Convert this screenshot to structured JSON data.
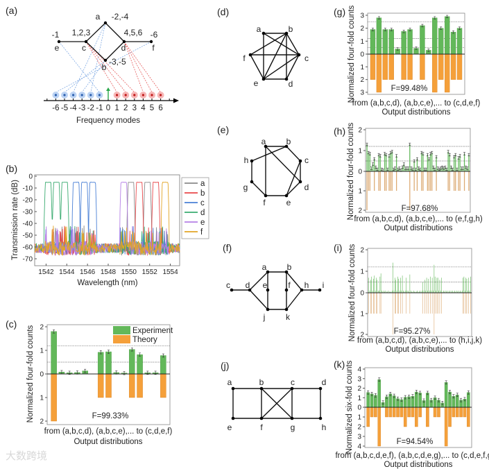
{
  "panel_labels": {
    "a": "(a)",
    "b": "(b)",
    "c": "(c)",
    "d": "(d)",
    "e": "(e)",
    "f": "(f)",
    "g": "(g)",
    "h": "(h)",
    "i": "(i)",
    "j": "(j)",
    "k": "(k)"
  },
  "watermark": "大数跨境",
  "colors": {
    "experiment": "#63b85a",
    "theory": "#f5a03a",
    "theory_light": "#dcaa72",
    "edge": "#111111",
    "mode_neg": "#6f9fe0",
    "mode_pos": "#e34848",
    "pump": "#2aa84a"
  },
  "diagram_a": {
    "nodes": {
      "a": "a",
      "b": "b",
      "c": "c",
      "d": "d",
      "e": "e",
      "f": "f"
    },
    "mode_labels": {
      "a": "-2,-4",
      "b": "-3,-5",
      "c": "1,2,3",
      "d": "4,5,6",
      "e": "-1",
      "f": "-6"
    },
    "edges": [
      [
        "e",
        "c"
      ],
      [
        "c",
        "a"
      ],
      [
        "a",
        "d"
      ],
      [
        "d",
        "b"
      ],
      [
        "b",
        "c"
      ],
      [
        "d",
        "f"
      ]
    ],
    "mode_links": [
      {
        "node": "e",
        "modes": [
          -1
        ]
      },
      {
        "node": "a",
        "modes": [
          -2,
          -4
        ]
      },
      {
        "node": "b",
        "modes": [
          -3,
          -5
        ]
      },
      {
        "node": "f",
        "modes": [
          -6
        ]
      },
      {
        "node": "c",
        "modes": [
          1,
          2,
          3
        ]
      },
      {
        "node": "d",
        "modes": [
          4,
          5,
          6
        ]
      }
    ],
    "modes": [
      "-6",
      "-5",
      "-4",
      "-3",
      "-2",
      "-1",
      "0",
      "1",
      "2",
      "3",
      "4",
      "5",
      "6"
    ],
    "xlabel": "Frequency modes"
  },
  "graph_d": {
    "nodes": {
      "a": "a",
      "b": "b",
      "c": "c",
      "d": "d",
      "e": "e",
      "f": "f"
    },
    "edges": [
      [
        "a",
        "b"
      ],
      [
        "a",
        "c"
      ],
      [
        "a",
        "e"
      ],
      [
        "b",
        "f"
      ],
      [
        "b",
        "e"
      ],
      [
        "b",
        "d"
      ],
      [
        "b",
        "c"
      ],
      [
        "f",
        "c"
      ],
      [
        "f",
        "e"
      ],
      [
        "c",
        "e"
      ],
      [
        "c",
        "d"
      ],
      [
        "e",
        "d"
      ]
    ]
  },
  "graph_e": {
    "nodes": {
      "a": "a",
      "b": "b",
      "c": "c",
      "d": "d",
      "e": "e",
      "f": "f",
      "g": "g",
      "h": "h"
    },
    "edges": [
      [
        "a",
        "b"
      ],
      [
        "b",
        "c"
      ],
      [
        "c",
        "d"
      ],
      [
        "d",
        "e"
      ],
      [
        "e",
        "f"
      ],
      [
        "f",
        "g"
      ],
      [
        "g",
        "h"
      ],
      [
        "h",
        "b"
      ],
      [
        "a",
        "f"
      ],
      [
        "a",
        "d"
      ],
      [
        "c",
        "e"
      ]
    ]
  },
  "graph_f": {
    "nodes": {
      "a": "a",
      "b": "b",
      "c": "c",
      "d": "d",
      "e": "e",
      "f": "f",
      "h": "h",
      "i": "i",
      "j": "j",
      "k": "k"
    },
    "edges": [
      [
        "c",
        "d"
      ],
      [
        "d",
        "a"
      ],
      [
        "d",
        "j"
      ],
      [
        "a",
        "b"
      ],
      [
        "a",
        "e"
      ],
      [
        "e",
        "j"
      ],
      [
        "b",
        "f"
      ],
      [
        "f",
        "k"
      ],
      [
        "j",
        "k"
      ],
      [
        "b",
        "h"
      ],
      [
        "k",
        "h"
      ],
      [
        "h",
        "i"
      ]
    ]
  },
  "graph_j": {
    "nodes": {
      "a": "a",
      "b": "b",
      "c": "c",
      "d": "d",
      "e": "e",
      "f": "f",
      "g": "g",
      "h": "h"
    },
    "edges": [
      [
        "a",
        "b"
      ],
      [
        "b",
        "c"
      ],
      [
        "c",
        "d"
      ],
      [
        "e",
        "f"
      ],
      [
        "f",
        "g"
      ],
      [
        "g",
        "h"
      ],
      [
        "a",
        "e"
      ],
      [
        "b",
        "f"
      ],
      [
        "c",
        "g"
      ],
      [
        "d",
        "h"
      ],
      [
        "b",
        "g"
      ],
      [
        "c",
        "f"
      ]
    ]
  },
  "chart_data": [
    {
      "panel": "b",
      "type": "line",
      "xlabel": "Wavelength (nm)",
      "ylabel": "Transmission rate (dB)",
      "xlim": [
        1540.9,
        1554.9
      ],
      "ylim": [
        -75,
        0
      ],
      "xticks": [
        "1542",
        "1544",
        "1546",
        "1548",
        "1550",
        "1552",
        "1554"
      ],
      "yticks": [
        "0",
        "-10",
        "-20",
        "-30",
        "-40",
        "-50",
        "-60",
        "-70"
      ],
      "legend": "right-outside",
      "passband_peak_db": -5,
      "noise_floor_db": -63,
      "passband_width_nm": 0.55,
      "series": [
        {
          "name": "a",
          "color": "#8a8a8a",
          "centers": [
            1550.2,
            1551.8
          ]
        },
        {
          "name": "b",
          "color": "#e8474a",
          "centers": [
            1551.0,
            1552.6
          ]
        },
        {
          "name": "c",
          "color": "#4a80d6",
          "centers": [
            1544.9,
            1545.7,
            1546.5
          ]
        },
        {
          "name": "d",
          "color": "#3aab70",
          "centers": [
            1542.2,
            1543.0,
            1543.8
          ]
        },
        {
          "name": "e",
          "color": "#b57fe6",
          "centers": [
            1549.5
          ]
        },
        {
          "name": "f",
          "color": "#e2a526",
          "centers": [
            1553.5
          ]
        }
      ]
    },
    {
      "panel": "c",
      "type": "bar",
      "ylabel": "Normalized four-fold counts",
      "xlabel_line1": "from (a,b,c,d), (a,b,c,e),... to (c,d,e,f)",
      "xlabel_line2": "Output distributions",
      "fidelity": "F=99.33%",
      "legend": [
        "Experiment",
        "Theory"
      ],
      "legend_position": "top-right",
      "ylim_up": 2,
      "ylim_down": 2,
      "yticks_up": [
        "0",
        "1",
        "2"
      ],
      "yticks_down": [
        "1",
        "2"
      ],
      "dashed": [
        1.19,
        0.5
      ],
      "error": 0.07,
      "experiment": [
        1.8,
        0.08,
        0.05,
        0.06,
        0.13,
        0,
        0.92,
        0.94,
        0.06,
        0.04,
        1.04,
        0.82,
        0.05,
        0.05,
        0.78
      ],
      "theory": [
        2,
        0,
        0,
        0,
        0,
        0,
        1,
        1,
        0,
        0,
        1,
        1,
        0,
        0,
        1
      ]
    },
    {
      "panel": "g",
      "type": "bar",
      "ylabel": "Normalized four-fold counts",
      "xlabel_line1": "from (a,b,c,d), (a,b,c,e),... to (c,d,e,f)",
      "xlabel_line2": "Output distributions",
      "fidelity": "F=99.48%",
      "ylim_up": 3,
      "ylim_down": 3,
      "yticks_up": [
        "0",
        "1",
        "2",
        "3"
      ],
      "yticks_down": [
        "1",
        "2",
        "3"
      ],
      "dashed": [
        2.5,
        1.2,
        0.5
      ],
      "error": 0.1,
      "experiment": [
        1.9,
        2.8,
        1.9,
        1.9,
        0.4,
        1.75,
        1.9,
        0.45,
        2.2,
        0.3,
        2.8,
        2.0,
        2.9,
        1.7,
        2.0
      ],
      "theory": [
        2,
        3,
        2,
        2,
        0,
        2,
        2,
        0,
        2,
        0,
        3,
        2,
        3,
        2,
        2
      ]
    },
    {
      "panel": "h",
      "type": "bar",
      "ylabel": "Normalized four-fold counts",
      "xlabel_line1": "from (a,b,c,d), (a,b,c,e),... to (e,f,g,h)",
      "xlabel_line2": "Output distributions",
      "fidelity": "F=97.68%",
      "ylim_up": 2,
      "ylim_down": 2,
      "yticks_up": [
        "0",
        "1",
        "2"
      ],
      "yticks_down": [
        "1",
        "2"
      ],
      "dashed": [
        1.2,
        0.5
      ],
      "error": 0.06,
      "experiment": [
        1.3,
        0.9,
        0.85,
        0.15,
        0.35,
        0.6,
        0.2,
        0.1,
        0.8,
        0.75,
        0.1,
        0.05,
        0.85,
        0.8,
        0.1,
        0.75,
        0.9,
        0.95,
        0.1,
        0.15,
        0.75,
        0.1,
        0.15,
        0.05,
        0.2,
        0.35,
        0.15,
        0.15,
        0.15,
        1.3,
        0.15,
        0.1,
        0.5,
        0.1,
        0.6,
        0.15,
        0.1,
        0.9,
        0.85,
        0.1,
        0.1,
        0.8,
        0.6,
        0.85,
        0.9,
        0.2,
        0.1,
        0.7,
        0.15,
        0.1,
        0.15,
        0.2,
        0.15,
        0.2,
        0.1,
        0.95,
        0.8,
        0.2,
        0.1,
        0.7,
        0.8,
        0.1,
        0.65,
        0.75,
        0.15,
        0.15,
        0.85,
        0.2,
        0.15,
        0.8
      ],
      "theory": [
        2,
        1,
        1,
        0,
        0,
        1,
        0,
        0,
        1,
        1,
        0,
        0,
        1,
        1,
        0,
        1,
        1,
        1,
        0,
        0,
        1,
        0,
        0,
        0,
        0,
        0,
        0,
        0,
        0,
        2,
        0,
        0,
        1,
        0,
        1,
        0,
        0,
        1,
        1,
        0,
        0,
        1,
        1,
        1,
        1,
        0,
        0,
        1,
        0,
        0,
        0,
        0,
        0,
        0,
        0,
        1,
        1,
        0,
        0,
        1,
        1,
        0,
        1,
        1,
        0,
        0,
        1,
        0,
        0,
        1
      ]
    },
    {
      "panel": "i",
      "type": "bar",
      "ylabel": "Normalized four-fold counts",
      "xlabel_line1": "from (a,b,c,d), (a,b,c,e),... to (h,i,j,k)",
      "xlabel_line2": "Output distributions",
      "fidelity": "F=95.27%",
      "ylim_up": 2,
      "ylim_down": 2,
      "yticks_up": [
        "0",
        "1",
        "2"
      ],
      "yticks_down": [
        "1",
        "2"
      ],
      "dashed": [
        1.2,
        0.5
      ],
      "error": 0,
      "experiment": [
        0.7,
        0.1,
        0.6,
        0.75,
        0.1,
        0.65,
        0.8,
        0.1,
        0.7,
        0.6,
        0.1,
        0.1,
        0.75,
        0.9,
        0.1,
        0.05,
        0.1,
        0.05,
        0.1,
        0.05,
        0.05,
        0.1,
        0.05,
        0.05,
        0.05,
        0.1,
        1.4,
        0.1,
        0.7,
        0.6,
        0.1,
        0.75,
        0.65,
        0.1,
        0.7,
        0.1,
        0.8,
        0.1,
        0.05,
        0.1,
        0.7,
        0.1,
        0.1,
        0.05,
        0.85,
        0.1,
        0.05,
        0.05,
        0.1,
        0.05,
        0.05,
        0.05,
        0.1,
        0.05,
        0.05,
        0.1,
        0.05,
        0.1,
        0.5,
        0.1,
        0.6,
        0.1,
        0.7,
        0.1,
        0.65,
        0.1,
        0.75,
        0.1,
        0.7,
        0.1,
        1.3,
        0.75,
        0.1,
        0.7,
        0.7,
        0.1,
        0.6,
        0.1,
        0.7,
        0.05,
        0.1,
        0.05,
        0.1,
        0.05,
        0.1,
        0.05,
        0.1,
        0.05,
        0.1,
        0.05,
        0.1,
        0.05,
        0.1,
        0.05,
        0.1,
        0.05,
        0.1,
        0.05,
        0.1,
        0.05,
        0.1,
        0.7,
        0.75,
        0.1,
        0.7,
        0.65,
        0.1,
        0.7,
        0.1,
        0.75
      ],
      "theory": [
        1,
        0,
        1,
        1,
        0,
        1,
        1,
        0,
        1,
        1,
        0,
        0,
        1,
        1,
        0,
        0,
        0,
        0,
        0,
        0,
        0,
        0,
        0,
        0,
        0,
        0,
        2,
        0,
        1,
        1,
        0,
        1,
        1,
        0,
        1,
        0,
        1,
        0,
        0,
        0,
        1,
        0,
        0,
        0,
        1,
        0,
        0,
        0,
        0,
        0,
        0,
        0,
        0,
        0,
        0,
        0,
        0,
        0,
        1,
        0,
        1,
        0,
        1,
        0,
        1,
        0,
        1,
        0,
        1,
        0,
        2,
        1,
        0,
        1,
        1,
        0,
        1,
        0,
        1,
        0,
        0,
        0,
        0,
        0,
        0,
        0,
        0,
        0,
        0,
        0,
        0,
        0,
        0,
        0,
        0,
        0,
        0,
        0,
        0,
        0,
        0,
        1,
        1,
        0,
        1,
        1,
        0,
        1,
        0,
        1
      ]
    },
    {
      "panel": "k",
      "type": "bar",
      "ylabel": "Normalized six-fold counts",
      "xlabel_line1": "from (a,b,c,d,e,f), (a,b,c,d,e,g),... to (c,d,e,f,g,h)",
      "xlabel_line2": "Output distributions",
      "fidelity": "F=94.54%",
      "ylim_up": 4,
      "ylim_down": 4,
      "yticks_up": [
        "0",
        "1",
        "2",
        "3",
        "4"
      ],
      "yticks_down": [
        "1",
        "2",
        "3",
        "4"
      ],
      "dashed": [],
      "error": 0.18,
      "experiment": [
        1.55,
        1.4,
        1.25,
        2.9,
        0.5,
        1.1,
        1.4,
        1.2,
        0.9,
        0.8,
        1.05,
        1.1,
        1.15,
        1.6,
        1.5,
        0.7,
        1.5,
        0.75,
        1.0,
        0.75,
        0.45,
        2.6,
        1.6,
        1.15,
        1.3,
        0.75,
        0.85,
        1.55
      ],
      "theory": [
        2,
        1,
        1,
        4,
        0,
        1,
        1,
        1,
        1,
        1,
        2,
        1,
        1,
        2,
        1,
        0,
        2,
        0,
        1,
        1,
        0,
        4,
        2,
        1,
        1,
        1,
        1,
        2
      ]
    }
  ]
}
